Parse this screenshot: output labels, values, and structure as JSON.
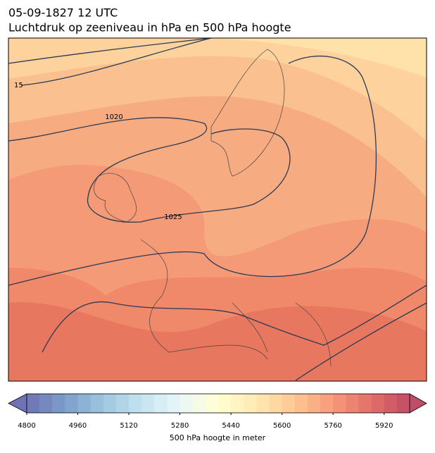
{
  "header": {
    "title": "05-09-1827 12 UTC",
    "subtitle": "Luchtdruk op zeeniveau in hPa en 500 hPa hoogte"
  },
  "map": {
    "contour_labels": [
      "15",
      "1020",
      "1025"
    ]
  },
  "colorbar": {
    "range": [
      4800,
      6000
    ],
    "ticks": [
      4800,
      4960,
      5120,
      5280,
      5440,
      5600,
      5760,
      5920
    ],
    "label": "500 hPa hoogte in meter"
  }
}
